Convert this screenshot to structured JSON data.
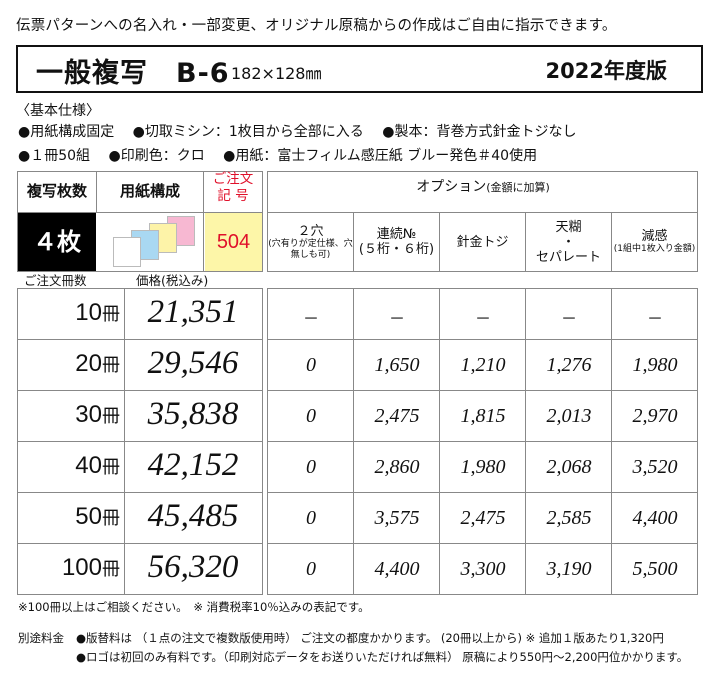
{
  "intro": "伝票パターンへの名入れ・一部変更、オリジナル原稿からの作成はご自由に指示できます。",
  "title": {
    "name": "一般複写　B-6",
    "size": "182×128㎜",
    "year": "2022年度版"
  },
  "spec": {
    "heading": "〈基本仕様〉",
    "line1": [
      "●用紙構成固定",
      "●切取ミシン：1枚目から全部に入る",
      "●製本：背巻方式針金トジなし"
    ],
    "line2": [
      "●１冊50組",
      "●印刷色：クロ",
      "●用紙：富士フィルム感圧紙 ブルー発色＃40使用"
    ]
  },
  "header": {
    "copies_label": "複写枚数",
    "paper_label": "用紙構成",
    "order_label_1": "ご注文",
    "order_label_2": "記 号",
    "options_label": "オプション",
    "options_note": "(金額に加算)"
  },
  "product": {
    "copies": "４枚",
    "order_code": "504",
    "paper_colors": [
      "#f7b8d2",
      "#fdf3a8",
      "#a9d8f2",
      "#ffffff"
    ]
  },
  "options": [
    {
      "name": "２穴",
      "note": "(穴有りが定仕様、穴無しも可)"
    },
    {
      "name": "連続№",
      "note2": "(５桁・６桁)"
    },
    {
      "name": "針金トジ"
    },
    {
      "name": "天糊",
      "dot": "・",
      "name2": "セパレート"
    },
    {
      "name": "減感",
      "note": "(1組中1枚入り金額)"
    }
  ],
  "sublabels": {
    "qty": "ご注文冊数",
    "price": "価格(税込み)"
  },
  "unit": "冊",
  "rows": [
    {
      "qty": "10",
      "price": "21,351",
      "opts": [
        "－",
        "－",
        "－",
        "－",
        "－"
      ]
    },
    {
      "qty": "20",
      "price": "29,546",
      "opts": [
        "0",
        "1,650",
        "1,210",
        "1,276",
        "1,980"
      ]
    },
    {
      "qty": "30",
      "price": "35,838",
      "opts": [
        "0",
        "2,475",
        "1,815",
        "2,013",
        "2,970"
      ]
    },
    {
      "qty": "40",
      "price": "42,152",
      "opts": [
        "0",
        "2,860",
        "1,980",
        "2,068",
        "3,520"
      ]
    },
    {
      "qty": "50",
      "price": "45,485",
      "opts": [
        "0",
        "3,575",
        "2,475",
        "2,585",
        "4,400"
      ]
    },
    {
      "qty": "100",
      "price": "56,320",
      "opts": [
        "0",
        "4,400",
        "3,300",
        "3,190",
        "5,500"
      ]
    }
  ],
  "notes": {
    "line1": "※100冊以上はご相談ください。　※ 消費税率10％込みの表記です。",
    "label": "別途料金",
    "line2": "●版替料は （１点の注文で複数版使用時） ご注文の都度かかります。 (20冊以上から) ※ 追加１版あたり1,320円",
    "line3": "●ロゴは初回のみ有料です。（印刷対応データをお送りいただければ無料） 原稿により550円〜2,200円位かかります。"
  }
}
